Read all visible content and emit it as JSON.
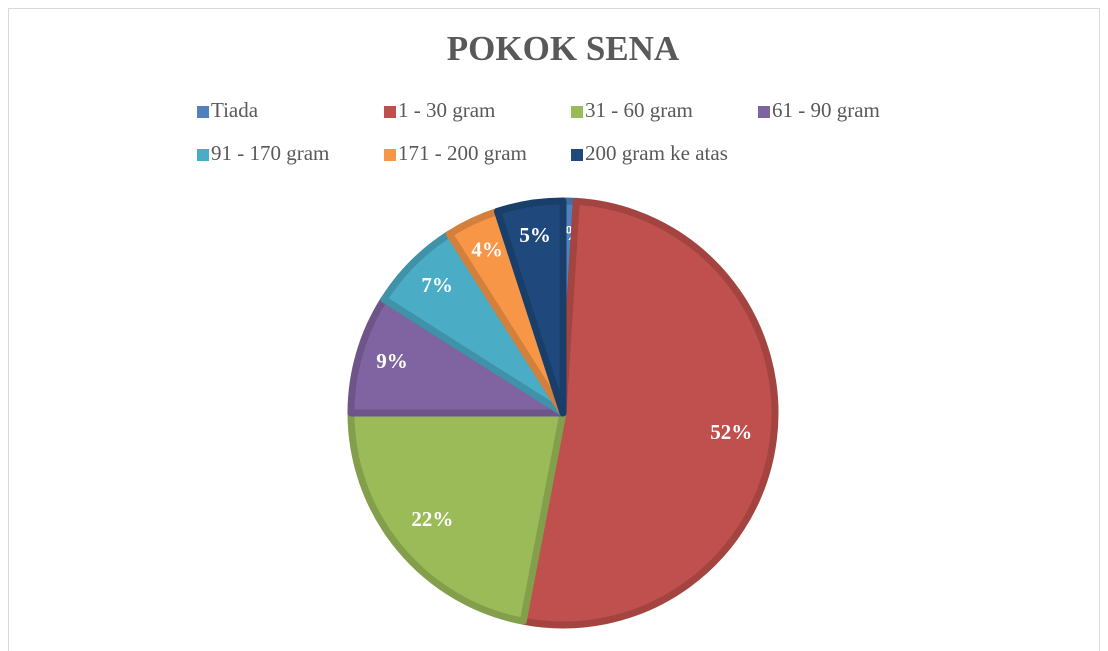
{
  "chart_data": {
    "type": "pie",
    "title": "POKOK SENA",
    "categories": [
      "Tiada",
      "1 - 30 gram",
      "31 - 60 gram",
      "61 - 90 gram",
      "91 - 170 gram",
      "171 - 200 gram",
      "200 gram ke atas"
    ],
    "values": [
      1,
      52,
      22,
      9,
      7,
      4,
      5
    ],
    "value_labels": [
      "1%",
      "52%",
      "22%",
      "9%",
      "7%",
      "4%",
      "5%"
    ],
    "colors": [
      "#4f81bd",
      "#c0504d",
      "#9bbb59",
      "#8064a2",
      "#4bacc6",
      "#f79646",
      "#1f497d"
    ],
    "legend": "top"
  }
}
